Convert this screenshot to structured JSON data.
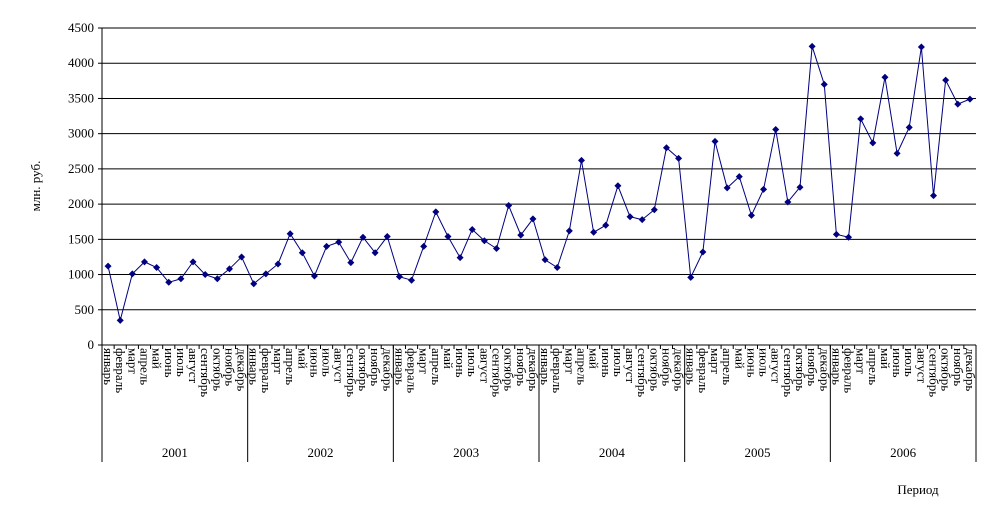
{
  "chart_data": {
    "type": "line",
    "y_label": "млн. руб.",
    "x_label": "Период",
    "categories": [
      "январь",
      "февраль",
      "март",
      "апрель",
      "май",
      "июнь",
      "июль",
      "август",
      "сентябрь",
      "октябрь",
      "ноябрь",
      "декабрь",
      "январь",
      "февраль",
      "март",
      "апрель",
      "май",
      "июнь",
      "июль",
      "август",
      "сентябрь",
      "октябрь",
      "ноябрь",
      "декабрь",
      "январь",
      "февраль",
      "март",
      "апрель",
      "май",
      "июнь",
      "июль",
      "август",
      "сентябрь",
      "октябрь",
      "ноябрь",
      "декабрь",
      "январь",
      "февраль",
      "март",
      "апрель",
      "май",
      "июнь",
      "июль",
      "август",
      "сентябрь",
      "октябрь",
      "ноябрь",
      "декабрь",
      "январь",
      "февраль",
      "март",
      "апрель",
      "май",
      "июнь",
      "июль",
      "август",
      "сентябрь",
      "октябрь",
      "ноябрь",
      "декабрь",
      "январь",
      "февраль",
      "март",
      "апрель",
      "май",
      "июнь",
      "июль",
      "август",
      "сентябрь",
      "октябрь",
      "ноябрь",
      "декабрь"
    ],
    "groups": [
      "2001",
      "2002",
      "2003",
      "2004",
      "2005",
      "2006"
    ],
    "series": [
      {
        "color": "#000080",
        "values": [
          1120,
          350,
          1010,
          1180,
          1100,
          890,
          940,
          1180,
          1000,
          940,
          1080,
          1250,
          870,
          1010,
          1150,
          1580,
          1310,
          980,
          1400,
          1460,
          1170,
          1530,
          1310,
          1540,
          970,
          920,
          1400,
          1890,
          1540,
          1240,
          1640,
          1480,
          1370,
          1980,
          1560,
          1790,
          1210,
          1100,
          1620,
          2620,
          1600,
          1700,
          2260,
          1820,
          1780,
          1920,
          2800,
          2650,
          960,
          1320,
          2890,
          2230,
          2390,
          1840,
          2210,
          3060,
          2030,
          2240,
          4240,
          3700,
          1570,
          1530,
          3210,
          2870,
          3800,
          2720,
          3090,
          4230,
          2120,
          3760,
          3420,
          3490
        ]
      }
    ],
    "ylim": [
      0,
      4500
    ],
    "yticks": [
      0,
      500,
      1000,
      1500,
      2000,
      2500,
      3000,
      3500,
      4000,
      4500
    ],
    "grid": true
  }
}
